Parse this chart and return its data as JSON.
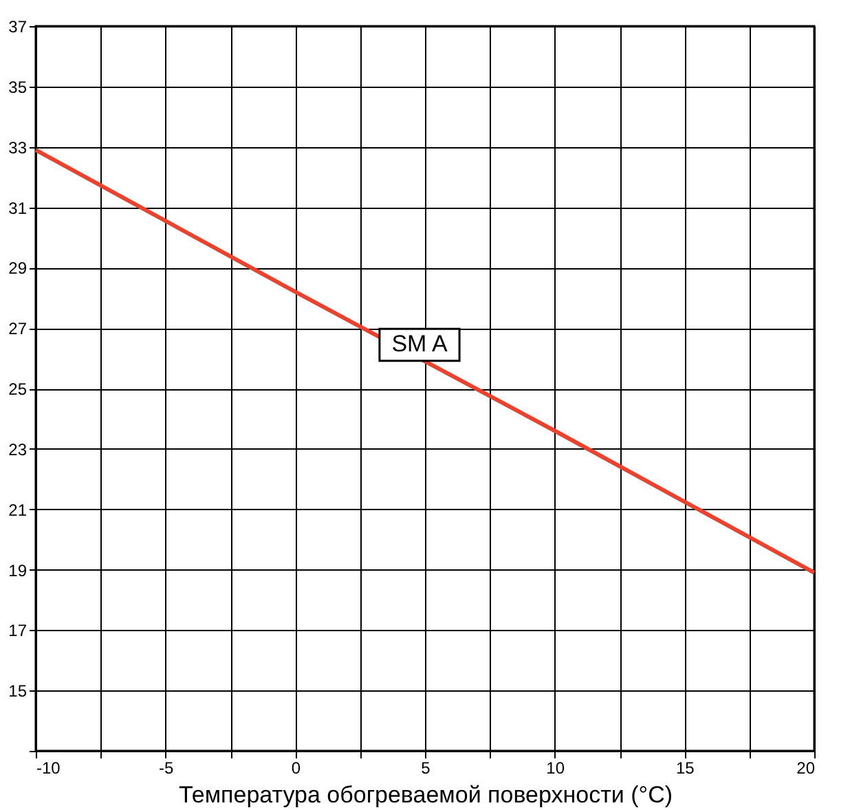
{
  "chart_data": {
    "type": "line",
    "xlabel": "Температура обогреваемой поверхности (°C)",
    "x": [
      -10,
      0,
      10,
      20
    ],
    "series": [
      {
        "name": "SM A",
        "color": "#e8432e",
        "values": [
          32.9,
          28.2,
          23.6,
          18.9
        ]
      }
    ],
    "xlim": [
      -10,
      20
    ],
    "xticks": [
      -10,
      {
        "value": -7.5,
        "label": null
      },
      -5,
      {
        "value": -2.5,
        "label": null
      },
      0,
      {
        "value": 2.5,
        "label": null
      },
      5,
      {
        "value": 7.5,
        "label": null
      },
      10,
      {
        "value": 12.5,
        "label": null
      },
      15,
      {
        "value": 17.5,
        "label": null
      },
      20
    ],
    "ylim": [
      13,
      37
    ],
    "yticks": [
      {
        "value": 13,
        "label": null
      },
      15,
      17,
      19,
      21,
      23,
      25,
      27,
      29,
      31,
      33,
      35,
      37
    ],
    "grid": true,
    "legend": false,
    "marker": "none",
    "line_style": "solid"
  }
}
